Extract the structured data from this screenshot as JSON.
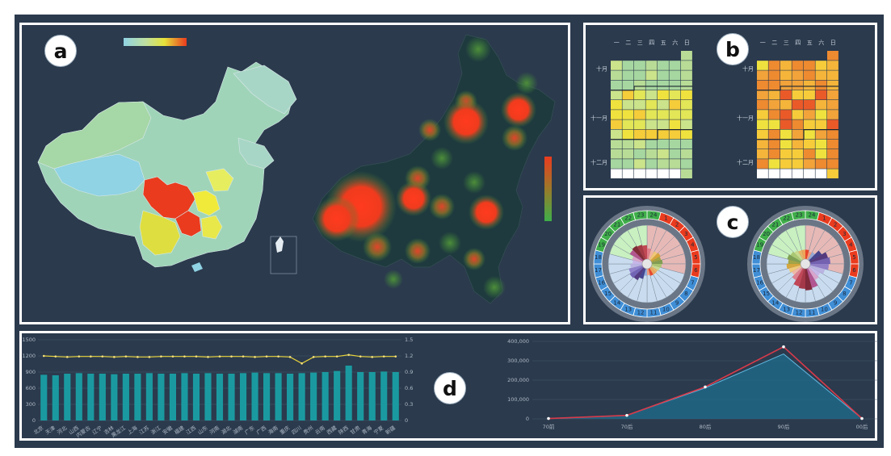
{
  "labels": {
    "a": "a",
    "b": "b",
    "c": "c",
    "d": "d"
  },
  "colors": {
    "background": "#2b3a4d",
    "border": "#ffffff",
    "hot": "#ea3b1e",
    "warm": "#f2a33a",
    "yellow": "#e6e23a",
    "cool": "#8fd3e4",
    "green": "#3fae49",
    "teal": "#1a9aa0"
  },
  "calendar": {
    "weekdays": [
      "一",
      "二",
      "三",
      "四",
      "五",
      "六",
      "日"
    ],
    "months": [
      "十月",
      "十一月",
      "十二月"
    ]
  },
  "clock": {
    "hours": [
      "24",
      "1",
      "2",
      "3",
      "4",
      "5",
      "6",
      "7",
      "8",
      "9",
      "10",
      "11",
      "12",
      "13",
      "14",
      "15",
      "16",
      "17",
      "18",
      "19",
      "20",
      "21",
      "22",
      "23"
    ]
  },
  "chart_data": [
    {
      "type": "bar",
      "categories": [
        "北京",
        "天津",
        "河北",
        "山西",
        "内蒙古",
        "辽宁",
        "吉林",
        "黑龙江",
        "上海",
        "江苏",
        "浙江",
        "安徽",
        "福建",
        "江西",
        "山东",
        "河南",
        "湖北",
        "湖南",
        "广东",
        "广西",
        "海南",
        "重庆",
        "四川",
        "贵州",
        "云南",
        "西藏",
        "陕西",
        "甘肃",
        "青海",
        "宁夏",
        "新疆"
      ],
      "series": [
        {
          "values": [
            0.85,
            0.84,
            0.87,
            0.88,
            0.87,
            0.87,
            0.86,
            0.87,
            0.87,
            0.88,
            0.87,
            0.87,
            0.88,
            0.87,
            0.88,
            0.87,
            0.87,
            0.88,
            0.89,
            0.88,
            0.88,
            0.87,
            0.88,
            0.89,
            0.9,
            0.92,
            1.02,
            0.9,
            0.9,
            0.91,
            0.9
          ]
        },
        {
          "values": [
            1.2,
            1.19,
            1.18,
            1.19,
            1.19,
            1.19,
            1.18,
            1.19,
            1.18,
            1.18,
            1.19,
            1.19,
            1.19,
            1.19,
            1.18,
            1.19,
            1.19,
            1.19,
            1.18,
            1.19,
            1.19,
            1.18,
            1.06,
            1.18,
            1.19,
            1.19,
            1.22,
            1.19,
            1.18,
            1.19,
            1.19
          ]
        }
      ],
      "yticks_left": [
        "0",
        "300",
        "600",
        "900",
        "1200",
        "1500"
      ],
      "yticks_right": [
        "0",
        "0.3",
        "0.6",
        "0.9",
        "1.2",
        "1.5"
      ],
      "ylim_right": [
        0,
        1.5
      ]
    },
    {
      "type": "area",
      "x": [
        "70前",
        "70后",
        "80后",
        "90后",
        "00后"
      ],
      "series": [
        {
          "values": [
            2000,
            18000,
            160000,
            335000,
            2000
          ]
        },
        {
          "values": [
            2000,
            18000,
            165000,
            372000,
            2000
          ]
        }
      ],
      "yticks": [
        "0",
        "100,000",
        "200,000",
        "300,000",
        "400,000"
      ],
      "ylim": [
        0,
        400000
      ]
    }
  ]
}
